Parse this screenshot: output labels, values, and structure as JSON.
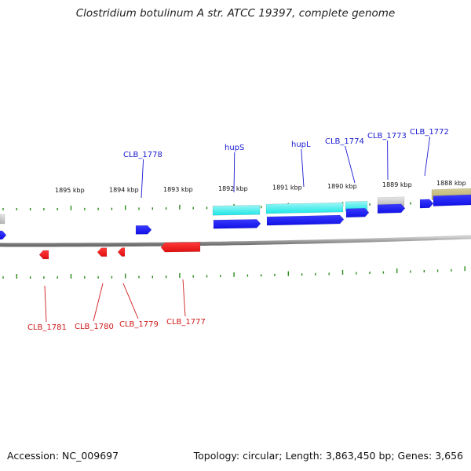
{
  "title": "Clostridium botulinum A str. ATCC 19397, complete genome",
  "footer": {
    "accession": "Accession: NC_009697",
    "summary": "Topology: circular; Length: 3,863,450 bp; Genes: 3,656"
  },
  "colors": {
    "plus_cds": "#1010e6",
    "minus_cds": "#e01010",
    "plus_label": "#1a1ad0",
    "minus_label": "#d01a1a",
    "cyan_feature": "#19e6e6",
    "gray_feature": "#c8c8c8",
    "olive_feature": "#b8ae70",
    "tick": "#2a8a1a",
    "backbone": "#8a8a8a"
  },
  "scale_labels": [
    "1895 kbp",
    "1894 kbp",
    "1893 kbp",
    "1892 kbp",
    "1891 kbp",
    "1890 kbp",
    "1889 kbp",
    "1888 kbp"
  ],
  "plus_strand_genes": [
    "CLB_1778",
    "hupS",
    "hupL",
    "CLB_1774",
    "CLB_1773",
    "CLB_1772"
  ],
  "minus_strand_genes": [
    "CLB_1781",
    "CLB_1780",
    "CLB_1779",
    "CLB_1777"
  ]
}
